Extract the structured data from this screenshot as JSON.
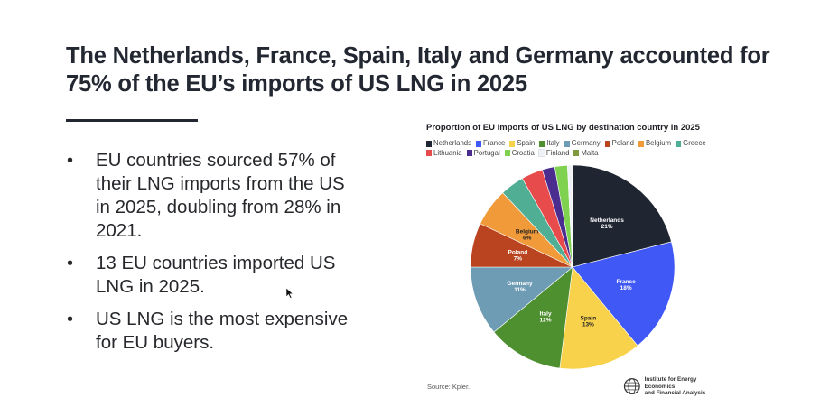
{
  "slide": {
    "title": "The Netherlands, France, Spain, Italy and Germany accounted for 75% of the EU’s imports of US LNG in 2025",
    "bullets": [
      "EU countries sourced 57% of their LNG imports from the US in 2025, doubling from 28% in 2021.",
      "13 EU countries imported US LNG in 2025.",
      "US LNG is the most expensive for EU buyers."
    ],
    "bullet_glyph": "•"
  },
  "chart": {
    "source": "Source: Kpler.",
    "logo_line1": "Institute for Energy Economics",
    "logo_line2": "and Financial Analysis",
    "logo_icon": "globe-icon"
  },
  "chart_data": {
    "type": "pie",
    "title": "Proportion of EU imports of US LNG by destination country in 2025",
    "legend_position": "top",
    "categories": [
      "Netherlands",
      "France",
      "Spain",
      "Italy",
      "Germany",
      "Poland",
      "Belgium",
      "Greece",
      "Lithuania",
      "Portugal",
      "Croatia",
      "Finland",
      "Malta"
    ],
    "values": [
      21,
      18,
      13,
      12,
      11,
      7,
      6,
      3.8,
      3.4,
      2.0,
      2.0,
      0.7,
      0.1
    ],
    "labels": [
      "21%",
      "18%",
      "13%",
      "12%",
      "11%",
      "7%",
      "6%",
      "",
      "",
      "",
      "",
      "",
      ""
    ],
    "colors": [
      "#1f2632",
      "#4058f5",
      "#f7d24a",
      "#4e8f2f",
      "#6f9cb5",
      "#b9441f",
      "#f09a3a",
      "#4fae93",
      "#e84b4b",
      "#4b2d8f",
      "#7fd24f",
      "#eef2f6",
      "#7f9a3c"
    ],
    "label_colors": [
      "#ffffff",
      "#ffffff",
      "#222222",
      "#ffffff",
      "#ffffff",
      "#ffffff",
      "#222222",
      "",
      "",
      "",
      "",
      "",
      ""
    ],
    "start_angle_deg": 0,
    "direction": "clockwise"
  }
}
